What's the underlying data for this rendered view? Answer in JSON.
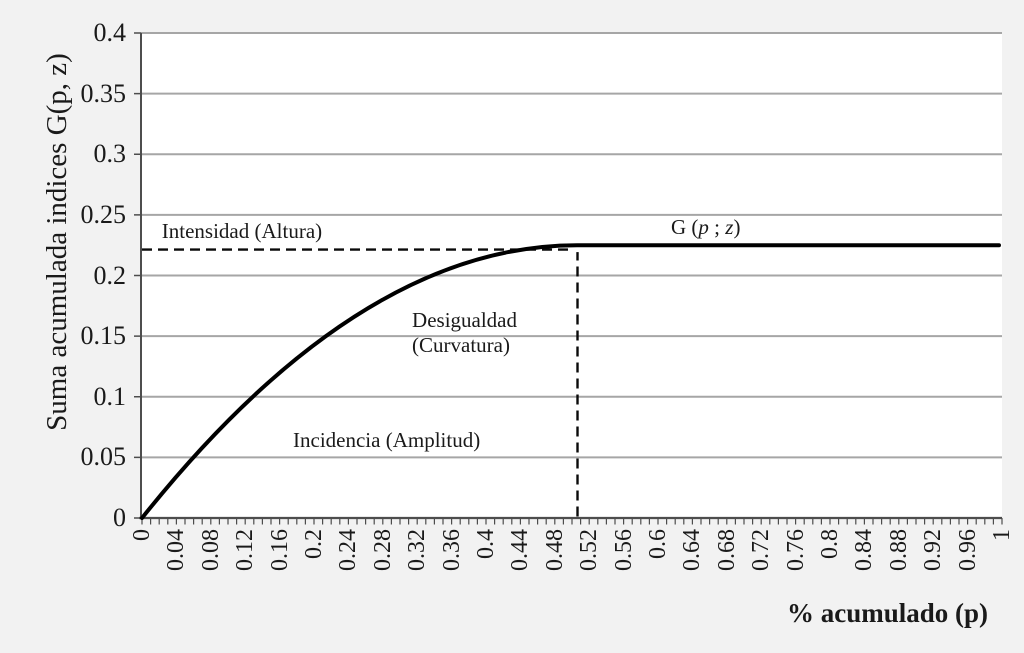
{
  "colors": {
    "background": "#f2f2f2",
    "plot_background": "#ffffff",
    "gridline": "#a6a6a6",
    "axis": "#4d4d4d",
    "curve": "#000000",
    "dashed_line": "#0a0a0a",
    "text": "#1a1a1a"
  },
  "chart_data": {
    "type": "line",
    "title": "",
    "xlabel": "% acumulado (p)",
    "ylabel": "Suma acumulada indices G(p, z)",
    "xlim": [
      0,
      1
    ],
    "ylim": [
      0,
      0.4
    ],
    "grid": "horizontal",
    "legend": "none",
    "x_ticks": [
      "0",
      "0.04",
      "0.08",
      "0.12",
      "0.16",
      "0.2",
      "0.24",
      "0.28",
      "0.32",
      "0.36",
      "0.4",
      "0.44",
      "0.48",
      "0.52",
      "0.56",
      "0.6",
      "0.64",
      "0.68",
      "0.72",
      "0.76",
      "0.8",
      "0.84",
      "0.88",
      "0.92",
      "0.96",
      "1"
    ],
    "x_minor_tick_step": 0.01,
    "y_ticks": [
      "0",
      "0.05",
      "0.1",
      "0.15",
      "0.2",
      "0.25",
      "0.3",
      "0.35",
      "0.4"
    ],
    "series": [
      {
        "name": "G (p ; z)",
        "model": "TIP poverty curve: G(p) = Gmax*(2t - t^2) with t = p/H for p <= H; G(p) = Gmax for p > H",
        "H": 0.506,
        "Gmax": 0.225,
        "points": [
          [
            0,
            0
          ],
          [
            0.05,
            0.042
          ],
          [
            0.1,
            0.08
          ],
          [
            0.15,
            0.114
          ],
          [
            0.2,
            0.143
          ],
          [
            0.25,
            0.167
          ],
          [
            0.3,
            0.188
          ],
          [
            0.35,
            0.204
          ],
          [
            0.4,
            0.215
          ],
          [
            0.45,
            0.222
          ],
          [
            0.5,
            0.225
          ],
          [
            0.55,
            0.225
          ],
          [
            0.6,
            0.225
          ],
          [
            0.65,
            0.225
          ],
          [
            0.7,
            0.225
          ],
          [
            0.75,
            0.225
          ],
          [
            0.8,
            0.225
          ],
          [
            0.85,
            0.225
          ],
          [
            0.9,
            0.225
          ],
          [
            0.95,
            0.225
          ],
          [
            1,
            0.225
          ]
        ]
      }
    ],
    "annotations": [
      {
        "id": "intensidad",
        "text": "Intensidad (Altura)",
        "x": 0.023,
        "y": 0.2465
      },
      {
        "id": "desigualdad",
        "text": "Desigualdad\n(Curvatura)",
        "x": 0.314,
        "y": 0.1732
      },
      {
        "id": "incidencia",
        "text": "Incidencia (Amplitud)",
        "x": 0.1756,
        "y": 0.0742
      },
      {
        "id": "curve-label",
        "text": "G (p ; z)",
        "parts": [
          {
            "t": "G ("
          },
          {
            "t": "p",
            "italic": true
          },
          {
            "t": " ; "
          },
          {
            "t": "z",
            "italic": true
          },
          {
            "t": ")"
          }
        ],
        "x": 0.6151,
        "y": 0.2499
      }
    ],
    "dashed_lines": [
      {
        "id": "intensity-level",
        "orientation": "horizontal",
        "value": 0.2214,
        "from": 0,
        "to": 0.502
      },
      {
        "id": "incidence-threshold",
        "orientation": "vertical",
        "value": 0.5064,
        "from": 0,
        "to": 0.2193
      }
    ]
  }
}
